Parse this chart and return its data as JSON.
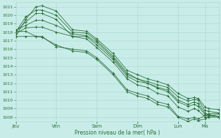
{
  "bg_color": "#c8ede8",
  "grid_color": "#a8d4ce",
  "line_color": "#2d6e3a",
  "ylim": [
    1007.5,
    1021.5
  ],
  "yticks": [
    1008,
    1009,
    1010,
    1011,
    1012,
    1013,
    1014,
    1015,
    1016,
    1017,
    1018,
    1019,
    1020,
    1021
  ],
  "xlabel": "Pression niveau de la mer( hPa )",
  "xlabel_color": "#2d6e3a",
  "xtick_labels": [
    "Jeu",
    "Ven",
    "Sam",
    "Dim",
    "Lun",
    "Ma"
  ],
  "xtick_positions": [
    0,
    0.2,
    0.4,
    0.6,
    0.8,
    0.933
  ],
  "xlim": [
    0,
    1.0
  ],
  "series": [
    {
      "x": [
        0.0,
        0.05,
        0.1,
        0.13,
        0.2,
        0.28,
        0.35,
        0.4,
        0.48,
        0.55,
        0.6,
        0.65,
        0.7,
        0.75,
        0.8,
        0.85,
        0.88,
        0.9,
        0.933,
        0.95,
        1.0
      ],
      "y": [
        1017.5,
        1019.5,
        1021.0,
        1021.1,
        1020.5,
        1018.3,
        1018.1,
        1017.2,
        1015.5,
        1013.5,
        1013.0,
        1012.5,
        1012.2,
        1011.8,
        1010.8,
        1010.2,
        1010.3,
        1010.2,
        1009.2,
        1009.0,
        1008.9
      ]
    },
    {
      "x": [
        0.0,
        0.05,
        0.1,
        0.13,
        0.2,
        0.28,
        0.35,
        0.4,
        0.48,
        0.55,
        0.6,
        0.65,
        0.7,
        0.75,
        0.8,
        0.85,
        0.88,
        0.9,
        0.933,
        0.95,
        1.0
      ],
      "y": [
        1018.0,
        1019.8,
        1020.6,
        1020.6,
        1020.0,
        1018.0,
        1017.9,
        1017.0,
        1015.2,
        1013.2,
        1012.5,
        1012.2,
        1011.8,
        1011.5,
        1010.4,
        1009.9,
        1010.1,
        1010.0,
        1008.8,
        1008.7,
        1008.5
      ]
    },
    {
      "x": [
        0.0,
        0.05,
        0.1,
        0.13,
        0.2,
        0.28,
        0.35,
        0.4,
        0.48,
        0.55,
        0.6,
        0.65,
        0.7,
        0.75,
        0.8,
        0.85,
        0.88,
        0.9,
        0.933,
        0.95,
        1.0
      ],
      "y": [
        1018.1,
        1019.2,
        1020.2,
        1020.2,
        1019.5,
        1017.5,
        1017.5,
        1016.5,
        1014.8,
        1012.8,
        1012.2,
        1012.0,
        1011.5,
        1011.2,
        1010.0,
        1009.5,
        1009.8,
        1009.6,
        1008.5,
        1008.3,
        1008.1
      ]
    },
    {
      "x": [
        0.0,
        0.05,
        0.1,
        0.13,
        0.2,
        0.28,
        0.35,
        0.4,
        0.48,
        0.55,
        0.6,
        0.65,
        0.7,
        0.75,
        0.8,
        0.85,
        0.88,
        0.9,
        0.933,
        0.95,
        1.0
      ],
      "y": [
        1018.2,
        1018.8,
        1019.4,
        1019.4,
        1018.8,
        1017.8,
        1017.6,
        1016.8,
        1015.0,
        1013.0,
        1012.5,
        1012.0,
        1011.4,
        1011.0,
        1009.8,
        1009.3,
        1009.5,
        1009.3,
        1008.3,
        1008.2,
        1008.0
      ]
    },
    {
      "x": [
        0.0,
        0.05,
        0.1,
        0.13,
        0.2,
        0.28,
        0.35,
        0.4,
        0.48,
        0.55,
        0.6,
        0.65,
        0.7,
        0.75,
        0.8,
        0.85,
        0.88,
        0.9,
        0.933,
        0.95,
        1.0
      ],
      "y": [
        1017.8,
        1018.5,
        1018.6,
        1018.6,
        1018.0,
        1017.5,
        1017.2,
        1016.2,
        1014.5,
        1012.5,
        1011.8,
        1011.5,
        1010.8,
        1010.5,
        1009.2,
        1008.7,
        1009.0,
        1008.8,
        1008.0,
        1008.1,
        1008.4
      ]
    },
    {
      "x": [
        0.0,
        0.05,
        0.1,
        0.13,
        0.2,
        0.28,
        0.35,
        0.4,
        0.48,
        0.55,
        0.6,
        0.65,
        0.7,
        0.75,
        0.8,
        0.85,
        0.88,
        0.9,
        0.933,
        0.95,
        1.0
      ],
      "y": [
        1017.5,
        1017.5,
        1017.5,
        1017.4,
        1016.5,
        1015.8,
        1015.6,
        1014.8,
        1013.0,
        1011.0,
        1010.5,
        1010.2,
        1009.5,
        1009.2,
        1008.0,
        1007.5,
        1007.8,
        1007.6,
        1007.8,
        1008.0,
        1008.0
      ]
    },
    {
      "x": [
        0.0,
        0.05,
        0.1,
        0.13,
        0.2,
        0.28,
        0.35,
        0.4,
        0.48,
        0.55,
        0.6,
        0.65,
        0.7,
        0.75,
        0.8,
        0.85,
        0.88,
        0.9,
        0.933,
        0.95,
        1.0
      ],
      "y": [
        1018.1,
        1018.1,
        1017.5,
        1017.5,
        1016.3,
        1016.0,
        1015.8,
        1015.0,
        1013.2,
        1011.2,
        1010.8,
        1010.5,
        1009.8,
        1009.5,
        1008.1,
        1007.8,
        1008.0,
        1007.8,
        1008.2,
        1008.4,
        1008.5
      ]
    }
  ]
}
